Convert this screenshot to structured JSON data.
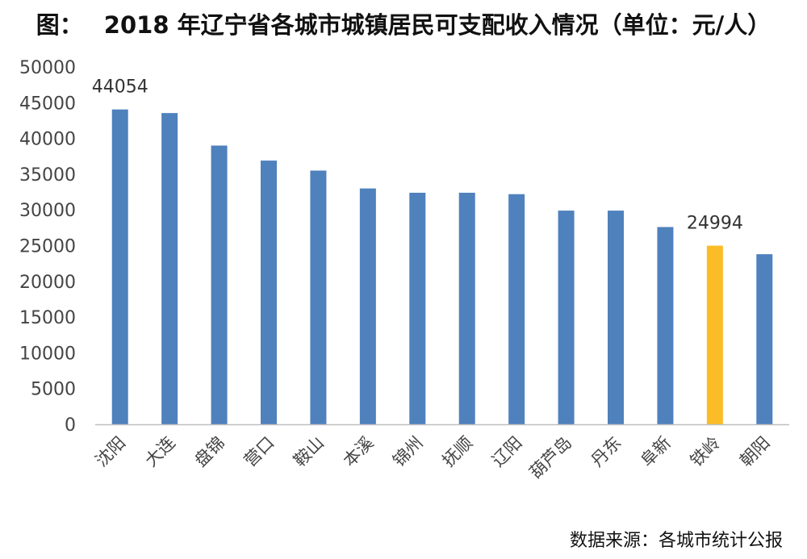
{
  "title": {
    "prefix": "图：",
    "text": "2018 年辽宁省各城市城镇居民可支配收入情况（单位：元/人）"
  },
  "source": "数据来源：各城市统计公报",
  "colors": {
    "default_bar": "#4f81bd",
    "highlight_bar": "#fbbc27",
    "axis": "#bfbfbf"
  },
  "chart_data": {
    "type": "bar",
    "title": "2018 年辽宁省各城市城镇居民可支配收入情况（单位：元/人）",
    "xlabel": "",
    "ylabel": "",
    "ylim": [
      0,
      50000
    ],
    "yticks": [
      0,
      5000,
      10000,
      15000,
      20000,
      25000,
      30000,
      35000,
      40000,
      45000,
      50000
    ],
    "grid": false,
    "categories": [
      "沈阳",
      "大连",
      "盘锦",
      "营口",
      "鞍山",
      "本溪",
      "锦州",
      "抚顺",
      "辽阳",
      "葫芦岛",
      "丹东",
      "阜新",
      "铁岭",
      "朝阳"
    ],
    "values": [
      44054,
      43550,
      39000,
      36900,
      35500,
      33000,
      32400,
      32400,
      32200,
      29900,
      29900,
      27600,
      24994,
      23800
    ],
    "highlight": "铁岭",
    "data_labels": [
      {
        "category": "沈阳",
        "text": "44054"
      },
      {
        "category": "铁岭",
        "text": "24994"
      }
    ]
  }
}
